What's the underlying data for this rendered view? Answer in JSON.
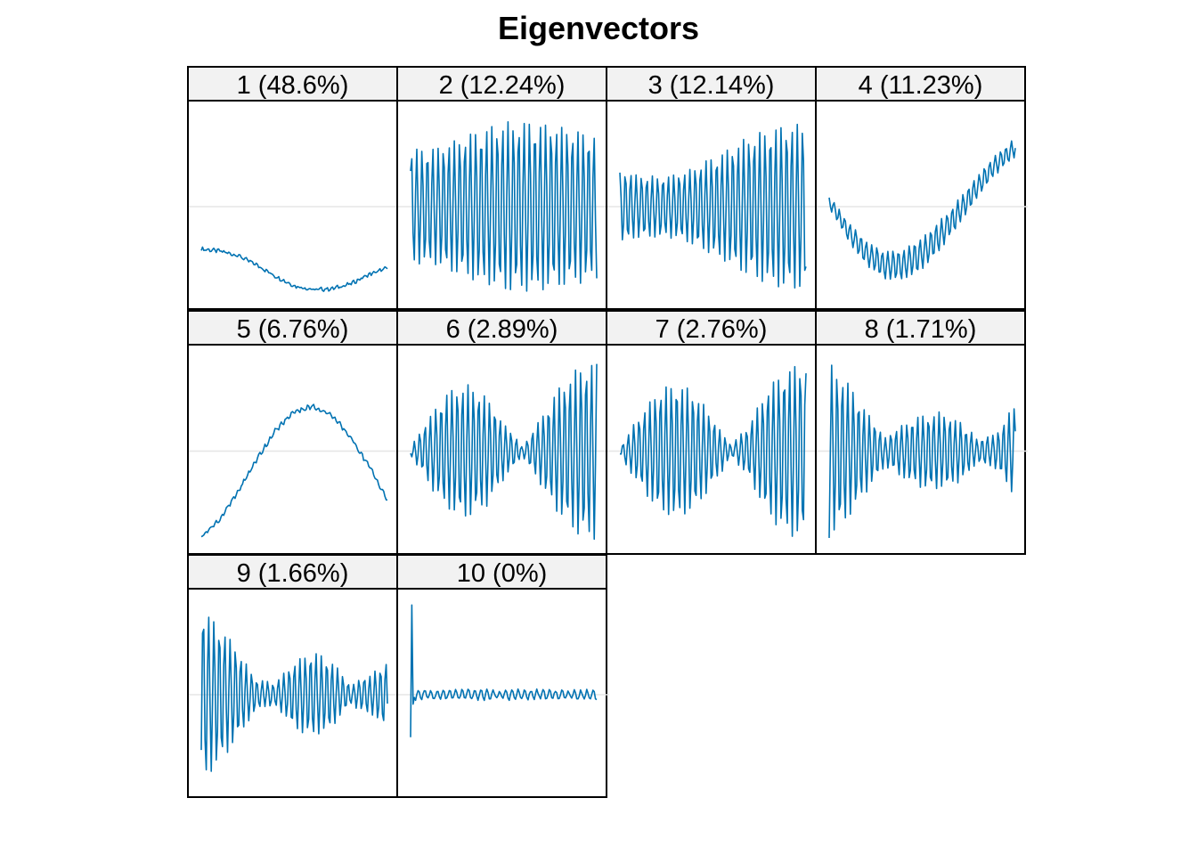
{
  "title": "Eigenvectors",
  "colors": {
    "line": "#0072B2",
    "zero_line": "#e6e6e6",
    "strip_bg": "#f2f2f2",
    "border": "#000000"
  },
  "chart_data": {
    "type": "line",
    "title": "Eigenvectors",
    "layout": "facet grid, 4 columns x 3 rows",
    "axes_visible": false,
    "reference_line": "horizontal line at y = 0",
    "points_per_panel": 150,
    "series": [
      {
        "label": "1 (48.6%)",
        "level": [
          -0.45,
          -0.47,
          -0.52,
          -0.62,
          -0.74,
          -0.84,
          -0.88,
          -0.87,
          -0.82,
          -0.72,
          -0.65
        ],
        "osc_amp": [
          0.01,
          0.01
        ],
        "osc_period": 4.3,
        "ylim": [
          -1,
          1
        ]
      },
      {
        "label": "2 (12.24%)",
        "level": [
          0,
          0,
          0,
          0,
          0,
          0,
          0,
          0,
          0,
          0,
          0
        ],
        "osc_amp": [
          0.6,
          0.62,
          0.72,
          0.82,
          0.88,
          0.9,
          0.88,
          0.82,
          0.75
        ],
        "osc_period": 4.3,
        "ylim": [
          -1,
          1
        ]
      },
      {
        "label": "3 (12.14%)",
        "level": [
          0,
          0,
          0,
          0,
          0,
          0,
          0,
          0,
          0,
          0,
          0
        ],
        "osc_amp": [
          0.38,
          0.33,
          0.32,
          0.38,
          0.52,
          0.66,
          0.78,
          0.86,
          0.88
        ],
        "osc_period": 4.3,
        "ylim": [
          -1,
          1
        ]
      },
      {
        "label": "4 (11.23%)",
        "level": [
          0.05,
          -0.25,
          -0.5,
          -0.62,
          -0.62,
          -0.5,
          -0.3,
          -0.05,
          0.22,
          0.45,
          0.62
        ],
        "osc_amp": [
          0.06,
          0.1,
          0.14,
          0.16,
          0.16,
          0.15,
          0.12,
          0.1,
          0.1
        ],
        "osc_period": 4.3,
        "ylim": [
          -1,
          1
        ]
      },
      {
        "label": "5 (6.76%)",
        "level": [
          -0.9,
          -0.72,
          -0.42,
          -0.08,
          0.22,
          0.42,
          0.47,
          0.38,
          0.15,
          -0.15,
          -0.52
        ],
        "osc_amp": [
          0.02,
          0.02
        ],
        "osc_period": 4.3,
        "ylim": [
          -1,
          1
        ]
      },
      {
        "label": "6 (2.89%)",
        "level": [
          0,
          0,
          0,
          0,
          0,
          0,
          0,
          0,
          0,
          0,
          0
        ],
        "osc_amp": [
          0.03,
          0.35,
          0.62,
          0.7,
          0.6,
          0.3,
          0.05,
          0.35,
          0.68,
          0.88,
          0.95
        ],
        "osc_period": 4.3,
        "ylim": [
          -1,
          1
        ]
      },
      {
        "label": "7 (2.76%)",
        "level": [
          0,
          0,
          0,
          0,
          0,
          0,
          0,
          0,
          0,
          0,
          0
        ],
        "osc_amp": [
          0.05,
          0.35,
          0.62,
          0.72,
          0.62,
          0.35,
          0.05,
          0.3,
          0.7,
          0.88,
          0.92
        ],
        "osc_period": 4.3,
        "ylim": [
          -1,
          1
        ]
      },
      {
        "label": "8 (1.71%)",
        "level": [
          0,
          0,
          0,
          0,
          0,
          0,
          0,
          0,
          0,
          0,
          0
        ],
        "osc_amp": [
          0.92,
          0.72,
          0.42,
          0.15,
          0.28,
          0.38,
          0.4,
          0.32,
          0.12,
          0.18,
          0.5
        ],
        "osc_period": 4.3,
        "ylim": [
          -1,
          1
        ]
      },
      {
        "label": "9 (1.66%)",
        "level": [
          0,
          0,
          0,
          0,
          0,
          0,
          0,
          0,
          0,
          0,
          0
        ],
        "osc_amp": [
          0.92,
          0.72,
          0.45,
          0.15,
          0.12,
          0.35,
          0.45,
          0.35,
          0.1,
          0.2,
          0.35
        ],
        "osc_period": 4.3,
        "ylim": [
          -1,
          1
        ]
      },
      {
        "label": "10 (0%)",
        "level": [
          0,
          0,
          0,
          0,
          0,
          0,
          0,
          0,
          0,
          0,
          0
        ],
        "osc_amp": [
          0.05,
          0.05
        ],
        "osc_period": 5,
        "ylim": [
          -1,
          1
        ],
        "spike": {
          "index": 1,
          "values": [
            -0.45,
            0.95,
            -0.1
          ]
        }
      }
    ]
  }
}
